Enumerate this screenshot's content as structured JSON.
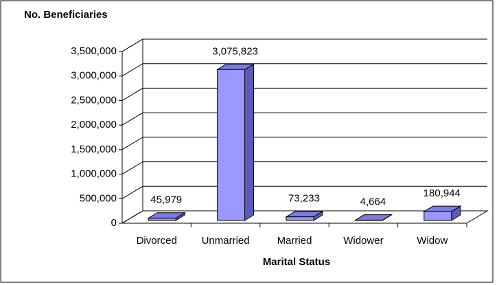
{
  "chart_data": {
    "type": "bar3d",
    "title": "No. Beneficiaries",
    "x_label": "Marital Status",
    "categories": [
      "Divorced",
      "Unmarried",
      "Married",
      "Widower",
      "Widow"
    ],
    "values": [
      45979,
      3075823,
      73233,
      4664,
      180944
    ],
    "value_labels": [
      "45,979",
      "3,075,823",
      "73,233",
      "4,664",
      "180,944"
    ],
    "color": "#9999ff",
    "ylim": [
      0,
      3500000
    ],
    "yticks": [
      0,
      {
        "value": 500000,
        "label": "500,000"
      },
      {
        "value": 1000000,
        "label": "1,000,000"
      },
      {
        "value": 1500000,
        "label": "1,500,000"
      },
      {
        "value": 2000000,
        "label": "2,000,000"
      },
      {
        "value": 2500000,
        "label": "2,500,000"
      },
      {
        "value": 3000000,
        "label": "3,000,000"
      },
      {
        "value": 3500000,
        "label": "3,500,000"
      }
    ],
    "grid": true
  }
}
